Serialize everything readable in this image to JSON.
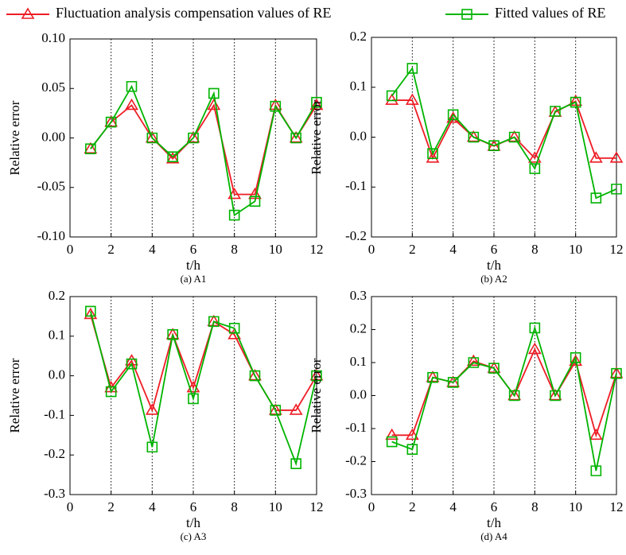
{
  "chart_data": [
    {
      "type": "line",
      "title": "(a) A1",
      "x_label": "t/h",
      "y_label": "Relative error",
      "x": [
        1,
        2,
        3,
        4,
        5,
        6,
        7,
        8,
        9,
        10,
        11,
        12
      ],
      "series": [
        {
          "name": "Fluctuation analysis compensation values of RE",
          "color": "#ee1c25",
          "marker": "triangle",
          "values": [
            -0.011,
            0.016,
            0.033,
            0,
            -0.021,
            0,
            0.033,
            -0.057,
            -0.057,
            0.033,
            0,
            0.033
          ]
        },
        {
          "name": "Fitted values of RE",
          "color": "#00b400",
          "marker": "square",
          "values": [
            -0.011,
            0.016,
            0.052,
            0,
            -0.019,
            0,
            0.045,
            -0.078,
            -0.064,
            0.032,
            0,
            0.036
          ]
        }
      ],
      "xlim": [
        0,
        12
      ],
      "xticks": [
        0,
        2,
        4,
        6,
        8,
        10,
        12
      ],
      "ylim": [
        -0.1,
        0.1
      ],
      "yticks": [
        {
          "value": -0.1,
          "label": "-0.10"
        },
        {
          "value": -0.05,
          "label": "-0.05"
        },
        {
          "value": 0,
          "label": "0.00"
        },
        {
          "value": 0.05,
          "label": "0.05"
        },
        {
          "value": 0.1,
          "label": "0.10"
        }
      ],
      "grid": "x"
    },
    {
      "type": "line",
      "title": "(b) A2",
      "x_label": "t/h",
      "y_label": "Relative error",
      "x": [
        1,
        2,
        3,
        4,
        5,
        6,
        7,
        8,
        9,
        10,
        11,
        12
      ],
      "series": [
        {
          "name": "Fluctuation analysis compensation values of RE",
          "color": "#ee1c25",
          "marker": "triangle",
          "values": [
            0.074,
            0.074,
            -0.042,
            0.038,
            0,
            -0.018,
            0,
            -0.042,
            0.05,
            0.072,
            -0.042,
            -0.042
          ]
        },
        {
          "name": "Fitted values of RE",
          "color": "#00b400",
          "marker": "square",
          "values": [
            0.083,
            0.138,
            -0.033,
            0.045,
            0,
            -0.017,
            0,
            -0.063,
            0.052,
            0.07,
            -0.122,
            -0.104
          ]
        }
      ],
      "xlim": [
        0,
        12
      ],
      "xticks": [
        0,
        2,
        4,
        6,
        8,
        10,
        12
      ],
      "ylim": [
        -0.2,
        0.2
      ],
      "yticks": [
        -0.2,
        -0.1,
        {
          "value": 0,
          "label": "0.0"
        },
        0.1,
        0.2
      ],
      "grid": "x"
    },
    {
      "type": "line",
      "title": "(c) A3",
      "x_label": "t/h",
      "y_label": "Relative error",
      "x": [
        1,
        2,
        3,
        4,
        5,
        6,
        7,
        8,
        9,
        10,
        11,
        12
      ],
      "series": [
        {
          "name": "Fluctuation analysis compensation values of RE",
          "color": "#ee1c25",
          "marker": "triangle",
          "values": [
            0.155,
            -0.03,
            0.038,
            -0.087,
            0.104,
            -0.03,
            0.137,
            0.104,
            0,
            -0.087,
            -0.087,
            0
          ]
        },
        {
          "name": "Fitted values of RE",
          "color": "#00b400",
          "marker": "square",
          "values": [
            0.163,
            -0.04,
            0.03,
            -0.18,
            0.104,
            -0.058,
            0.137,
            0.12,
            0,
            -0.087,
            -0.222,
            0
          ]
        }
      ],
      "xlim": [
        0,
        12
      ],
      "xticks": [
        0,
        2,
        4,
        6,
        8,
        10,
        12
      ],
      "ylim": [
        -0.3,
        0.2
      ],
      "yticks": [
        -0.3,
        -0.2,
        -0.1,
        {
          "value": 0,
          "label": "0.0"
        },
        0.1,
        0.2
      ],
      "grid": "x"
    },
    {
      "type": "line",
      "title": "(d) A4",
      "x_label": "t/h",
      "y_label": "Relative error",
      "x": [
        1,
        2,
        3,
        4,
        5,
        6,
        7,
        8,
        9,
        10,
        11,
        12
      ],
      "series": [
        {
          "name": "Fluctuation analysis compensation values of RE",
          "color": "#ee1c25",
          "marker": "triangle",
          "values": [
            -0.12,
            -0.12,
            0.055,
            0.04,
            0.104,
            0.083,
            0,
            0.14,
            0,
            0.104,
            -0.12,
            0.067
          ]
        },
        {
          "name": "Fitted values of RE",
          "color": "#00b400",
          "marker": "square",
          "values": [
            -0.14,
            -0.163,
            0.055,
            0.04,
            0.1,
            0.083,
            0,
            0.205,
            0,
            0.115,
            -0.228,
            0.067
          ]
        }
      ],
      "xlim": [
        0,
        12
      ],
      "xticks": [
        0,
        2,
        4,
        6,
        8,
        10,
        12
      ],
      "ylim": [
        -0.3,
        0.3
      ],
      "yticks": [
        -0.3,
        -0.2,
        -0.1,
        {
          "value": 0,
          "label": "0.0"
        },
        0.1,
        0.2,
        0.3
      ],
      "grid": "x"
    }
  ]
}
